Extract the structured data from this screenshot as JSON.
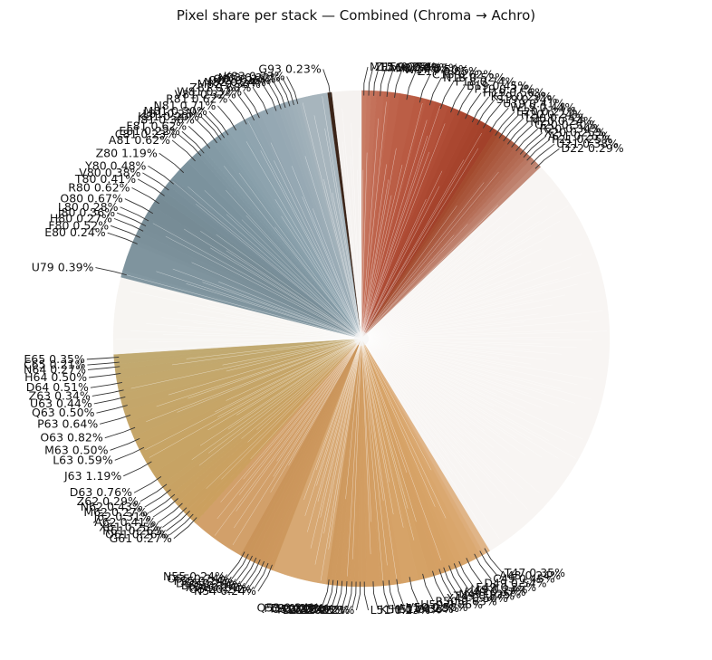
{
  "chart_data": {
    "type": "pie",
    "title": "Pixel share per stack — Combined (Chroma → Achro)",
    "start_angle_deg": 90,
    "direction": "clockwise",
    "colors": {
      "red": "#b5563f",
      "red_light": "#c9836c",
      "rust": "#a8472b",
      "white": "#f9f6f4",
      "sand": "#d6a468",
      "gold": "#c6a366",
      "slate": "#7b8f99",
      "slate_light": "#96a4b0",
      "dark": "#3b2418"
    },
    "slices": [
      {
        "label": "M15 0.27%",
        "value": 0.27,
        "color": "#c87c64"
      },
      {
        "label": "Z15 0.26%",
        "value": 0.26,
        "color": "#c67760"
      },
      {
        "label": "E16 0.30%",
        "value": 0.3,
        "color": "#c4715a"
      },
      {
        "label": "A16 0.40%",
        "value": 0.4,
        "color": "#c26c55"
      },
      {
        "label": "M17 0.35%",
        "value": 0.35,
        "color": "#c06850"
      },
      {
        "label": "W17 0.50%",
        "value": 0.5,
        "color": "#be634b"
      },
      {
        "label": "Z17 0.85%",
        "value": 0.85,
        "color": "#bb5e46"
      },
      {
        "label": "C18 0.62%",
        "value": 0.62,
        "color": "#b95a42"
      },
      {
        "label": "N18 0.52%",
        "value": 0.52,
        "color": "#b6553e"
      },
      {
        "label": "F18 0.74%",
        "value": 0.74,
        "color": "#b3513a"
      },
      {
        "label": "B19 0.45%",
        "value": 0.45,
        "color": "#b04d36"
      },
      {
        "label": "P19 0.37%",
        "value": 0.37,
        "color": "#ad4a33"
      },
      {
        "label": "H19 0.56%",
        "value": 0.56,
        "color": "#aa4730"
      },
      {
        "label": "K19 0.29%",
        "value": 0.29,
        "color": "#a8452e"
      },
      {
        "label": "S19 0.34%",
        "value": 0.34,
        "color": "#a6432c"
      },
      {
        "label": "U19 0.41%",
        "value": 0.41,
        "color": "#a4422b"
      },
      {
        "label": "W19 0.44%",
        "value": 0.44,
        "color": "#a2412a"
      },
      {
        "label": "E20 0.27%",
        "value": 0.27,
        "color": "#a34a2e"
      },
      {
        "label": "H20 0.24%",
        "value": 0.24,
        "color": "#a65034"
      },
      {
        "label": "L20 0.34%",
        "value": 0.34,
        "color": "#a8553a"
      },
      {
        "label": "M20 0.24%",
        "value": 0.24,
        "color": "#ab5a40"
      },
      {
        "label": "Q20 0.30%",
        "value": 0.3,
        "color": "#ad5f46"
      },
      {
        "label": "R20 0.34%",
        "value": 0.34,
        "color": "#b0644c"
      },
      {
        "label": "X20 0.25%",
        "value": 0.25,
        "color": "#b36a52"
      },
      {
        "label": "A21 0.25%",
        "value": 0.25,
        "color": "#b66f58"
      },
      {
        "label": "P21 0.25%",
        "value": 0.25,
        "color": "#ba7762"
      },
      {
        "label": "U21 0.38%",
        "value": 0.38,
        "color": "#be806c"
      },
      {
        "label": "D22 0.29%",
        "value": 0.29,
        "color": "#c38a77"
      },
      {
        "label": "",
        "value": 24.0,
        "color": "#f8f5f3"
      },
      {
        "label": "T47 0.35%",
        "value": 0.35,
        "color": "#e0b588"
      },
      {
        "label": "A48 0.24%",
        "value": 0.24,
        "color": "#ddad7a"
      },
      {
        "label": "C49 0.45%",
        "value": 0.45,
        "color": "#daa870"
      },
      {
        "label": "D49 0.54%",
        "value": 0.54,
        "color": "#d9a66c"
      },
      {
        "label": "F49 0.35%",
        "value": 0.35,
        "color": "#d8a469"
      },
      {
        "label": "I49 0.24%",
        "value": 0.24,
        "color": "#d7a367"
      },
      {
        "label": "K49 0.37%",
        "value": 0.37,
        "color": "#d6a266"
      },
      {
        "label": "N49 0.25%",
        "value": 0.25,
        "color": "#d6a165"
      },
      {
        "label": "T49 0.27%",
        "value": 0.27,
        "color": "#d5a064"
      },
      {
        "label": "X49 0.50%",
        "value": 0.5,
        "color": "#d4a064"
      },
      {
        "label": "R50 0.63%",
        "value": 0.63,
        "color": "#d5a266"
      },
      {
        "label": "U50 0.86%",
        "value": 0.86,
        "color": "#d6a368"
      },
      {
        "label": "V50 0.58%",
        "value": 0.58,
        "color": "#d5a166"
      },
      {
        "label": "A51 0.28%",
        "value": 0.28,
        "color": "#d4a065"
      },
      {
        "label": "H51 0.36%",
        "value": 0.36,
        "color": "#d39f64"
      },
      {
        "label": "K51 0.74%",
        "value": 0.74,
        "color": "#d39e63"
      },
      {
        "label": "L51 0.23%",
        "value": 0.23,
        "color": "#d29d62"
      },
      {
        "label": "T51 0.23%",
        "value": 0.23,
        "color": "#d29d62"
      },
      {
        "label": "B52 0.22%",
        "value": 0.22,
        "color": "#d19c61"
      },
      {
        "label": "D52 0.25%",
        "value": 0.25,
        "color": "#d19c61"
      },
      {
        "label": "H52 0.29%",
        "value": 0.29,
        "color": "#d09b60"
      },
      {
        "label": "O52 0.24%",
        "value": 0.24,
        "color": "#d09b60"
      },
      {
        "label": "T52 0.26%",
        "value": 0.26,
        "color": "#cf9a5f"
      },
      {
        "label": "F53 0.23%",
        "value": 0.23,
        "color": "#cf9a5f"
      },
      {
        "label": "Q53 0.24%",
        "value": 0.24,
        "color": "#ce995e"
      },
      {
        "label": "",
        "value": 3.0,
        "color": "#d7a873"
      },
      {
        "label": "N54 0.24%",
        "value": 0.24,
        "color": "#cd985d"
      },
      {
        "label": "O54 0.24%",
        "value": 0.24,
        "color": "#cd975d"
      },
      {
        "label": "X54 0.24%",
        "value": 0.24,
        "color": "#cc975c"
      },
      {
        "label": "B55 0.24%",
        "value": 0.24,
        "color": "#cc965c"
      },
      {
        "label": "D55 0.24%",
        "value": 0.24,
        "color": "#cb965b"
      },
      {
        "label": "F55 0.24%",
        "value": 0.24,
        "color": "#cb955b"
      },
      {
        "label": "O55 0.24%",
        "value": 0.24,
        "color": "#ca955a"
      },
      {
        "label": "N55 0.24%",
        "value": 0.24,
        "color": "#ca945a"
      },
      {
        "label": "",
        "value": 3.0,
        "color": "#d2a06a"
      },
      {
        "label": "G61 0.27%",
        "value": 0.27,
        "color": "#cca05f"
      },
      {
        "label": "O61 0.26%",
        "value": 0.26,
        "color": "#cba05f"
      },
      {
        "label": "R61 0.26%",
        "value": 0.26,
        "color": "#cba060"
      },
      {
        "label": "X61 0.25%",
        "value": 0.25,
        "color": "#caa060"
      },
      {
        "label": "A62 0.41%",
        "value": 0.41,
        "color": "#caa161"
      },
      {
        "label": "J62 0.31%",
        "value": 0.31,
        "color": "#c9a162"
      },
      {
        "label": "M62 0.27%",
        "value": 0.27,
        "color": "#c9a262"
      },
      {
        "label": "N62 0.43%",
        "value": 0.43,
        "color": "#c8a263"
      },
      {
        "label": "Z62 0.29%",
        "value": 0.29,
        "color": "#c8a364"
      },
      {
        "label": "D63 0.76%",
        "value": 0.76,
        "color": "#c7a364"
      },
      {
        "label": "J63 1.19%",
        "value": 1.19,
        "color": "#c7a465"
      },
      {
        "label": "L63 0.59%",
        "value": 0.59,
        "color": "#c6a466"
      },
      {
        "label": "M63 0.50%",
        "value": 0.5,
        "color": "#c6a567"
      },
      {
        "label": "O63 0.82%",
        "value": 0.82,
        "color": "#c5a568"
      },
      {
        "label": "P63 0.64%",
        "value": 0.64,
        "color": "#c5a669"
      },
      {
        "label": "Q63 0.50%",
        "value": 0.5,
        "color": "#c4a66a"
      },
      {
        "label": "U63 0.44%",
        "value": 0.44,
        "color": "#c4a76b"
      },
      {
        "label": "Z63 0.34%",
        "value": 0.34,
        "color": "#c3a76c"
      },
      {
        "label": "D64 0.51%",
        "value": 0.51,
        "color": "#c3a86d"
      },
      {
        "label": "H64 0.50%",
        "value": 0.5,
        "color": "#c2a86e"
      },
      {
        "label": "N64 0.27%",
        "value": 0.27,
        "color": "#c2a96f"
      },
      {
        "label": "C65 0.21%",
        "value": 0.21,
        "color": "#c1a970"
      },
      {
        "label": "E65 0.35%",
        "value": 0.35,
        "color": "#c1aa71"
      },
      {
        "label": "",
        "value": 4.2,
        "color": "#f7f5f2"
      },
      {
        "label": "U79 0.39%",
        "value": 0.39,
        "color": "#8297a1"
      },
      {
        "label": "",
        "value": 1.5,
        "color": "#7f949e"
      },
      {
        "label": "E80 0.24%",
        "value": 0.24,
        "color": "#7d929c"
      },
      {
        "label": "F80 0.52%",
        "value": 0.52,
        "color": "#7b909a"
      },
      {
        "label": "H80 0.27%",
        "value": 0.27,
        "color": "#7a8f99"
      },
      {
        "label": "J80 0.36%",
        "value": 0.36,
        "color": "#798e98"
      },
      {
        "label": "L80 0.28%",
        "value": 0.28,
        "color": "#788d97"
      },
      {
        "label": "O80 0.67%",
        "value": 0.67,
        "color": "#778c96"
      },
      {
        "label": "R80 0.62%",
        "value": 0.62,
        "color": "#768b95"
      },
      {
        "label": "T80 0.41%",
        "value": 0.41,
        "color": "#778d97"
      },
      {
        "label": "V80 0.38%",
        "value": 0.38,
        "color": "#788e99"
      },
      {
        "label": "Y80 0.48%",
        "value": 0.48,
        "color": "#7a909b"
      },
      {
        "label": "Z80 1.19%",
        "value": 1.19,
        "color": "#7b929d"
      },
      {
        "label": "A81 0.62%",
        "value": 0.62,
        "color": "#7d949f"
      },
      {
        "label": "C81 0.23%",
        "value": 0.23,
        "color": "#7f96a1"
      },
      {
        "label": "E81 0.22%",
        "value": 0.22,
        "color": "#8198a3"
      },
      {
        "label": "F81 0.62%",
        "value": 0.62,
        "color": "#839aa5"
      },
      {
        "label": "I81 0.36%",
        "value": 0.36,
        "color": "#859ca7"
      },
      {
        "label": "K81 0.20%",
        "value": 0.2,
        "color": "#879ea9"
      },
      {
        "label": "L81 0.23%",
        "value": 0.23,
        "color": "#89a0ab"
      },
      {
        "label": "M81 0.30%",
        "value": 0.3,
        "color": "#8ba1ac"
      },
      {
        "label": "N81 0.71%",
        "value": 0.71,
        "color": "#8da3ae"
      },
      {
        "label": "R81 0.62%",
        "value": 0.62,
        "color": "#8fa4af"
      },
      {
        "label": "V81 0.32%",
        "value": 0.32,
        "color": "#91a5b0"
      },
      {
        "label": "W81 0.32%",
        "value": 0.32,
        "color": "#93a6b1"
      },
      {
        "label": "Z81 0.68%",
        "value": 0.68,
        "color": "#95a8b3"
      },
      {
        "label": "M82 0.33%",
        "value": 0.33,
        "color": "#97a9b4"
      },
      {
        "label": "N82 0.24%",
        "value": 0.24,
        "color": "#99abb5"
      },
      {
        "label": "O82 0.26%",
        "value": 0.26,
        "color": "#9bacb6"
      },
      {
        "label": "Q82 0.25%",
        "value": 0.25,
        "color": "#9daeb8"
      },
      {
        "label": "N83 0.22%",
        "value": 0.22,
        "color": "#9fb0b9"
      },
      {
        "label": "K83 0.23%",
        "value": 0.23,
        "color": "#a1b1ba"
      },
      {
        "label": "",
        "value": 1.6,
        "color": "#a7b5bd"
      },
      {
        "label": "G93 0.23%",
        "value": 0.23,
        "color": "#3b2418"
      },
      {
        "label": "",
        "value": 1.6,
        "color": "#f5f2f0"
      }
    ]
  }
}
